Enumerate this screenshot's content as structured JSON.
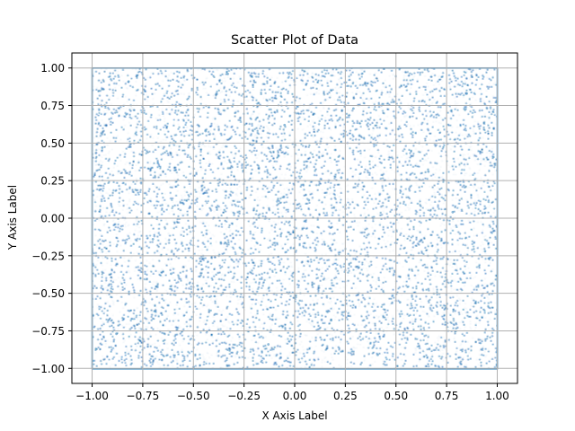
{
  "chart_data": {
    "type": "scatter",
    "title": "Scatter Plot of Data",
    "xlabel": "X Axis Label",
    "ylabel": "Y Axis Label",
    "xlim": [
      -1.1,
      1.1
    ],
    "ylim": [
      -1.1,
      1.1
    ],
    "grid": true,
    "legend": "none",
    "x_ticks": [
      -1.0,
      -0.75,
      -0.5,
      -0.25,
      0.0,
      0.25,
      0.5,
      0.75,
      1.0
    ],
    "x_tick_labels": [
      "−1.00",
      "−0.75",
      "−0.50",
      "−0.25",
      "0.00",
      "0.25",
      "0.50",
      "0.75",
      "1.00"
    ],
    "y_ticks": [
      -1.0,
      -0.75,
      -0.5,
      -0.25,
      0.0,
      0.25,
      0.5,
      0.75,
      1.0
    ],
    "y_tick_labels": [
      "−1.00",
      "−0.75",
      "−0.50",
      "−0.25",
      "0.00",
      "0.25",
      "0.50",
      "0.75",
      "1.00"
    ],
    "series": [
      {
        "marker_color": "#1f77b4",
        "distribution": "uniform",
        "x_range": [
          -1.0,
          1.0
        ],
        "y_range": [
          -1.0,
          1.0
        ],
        "x": [
          -0.82,
          -0.61,
          -0.44,
          -0.13,
          0.07,
          0.29,
          0.52,
          0.78,
          0.94,
          -0.95,
          -0.33,
          0.41,
          0.66,
          -0.7,
          0.18,
          -0.05,
          0.85,
          -0.48,
          0.23,
          -0.88
        ],
        "y": [
          0.91,
          -0.37,
          0.58,
          -0.84,
          0.12,
          0.73,
          -0.56,
          0.04,
          -0.22,
          0.47,
          0.96,
          -0.91,
          0.31,
          -0.14,
          -0.68,
          0.62,
          0.83,
          -0.45,
          0.27,
          -0.77
        ]
      }
    ]
  }
}
